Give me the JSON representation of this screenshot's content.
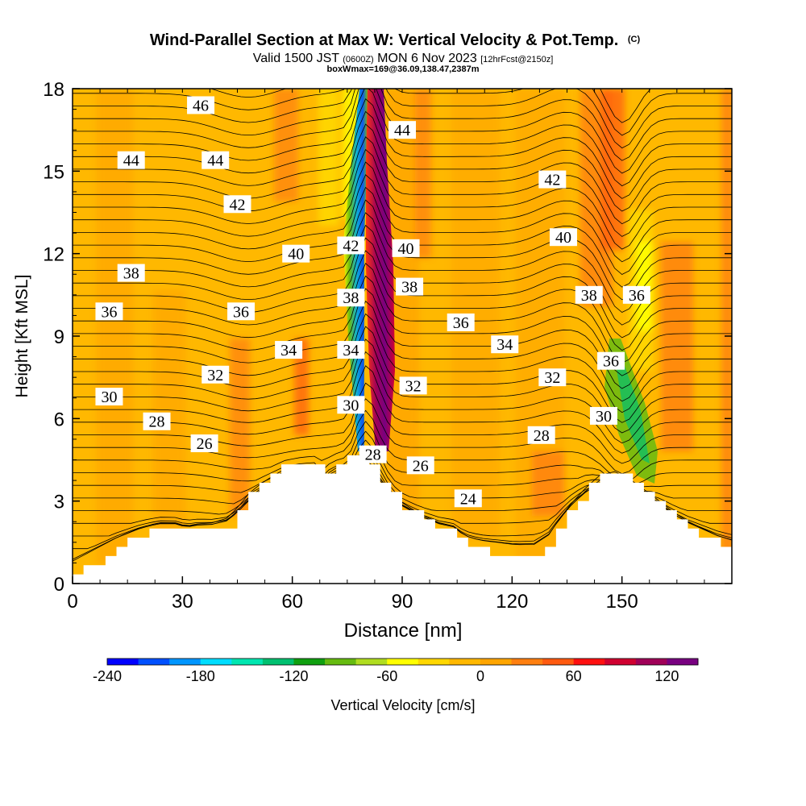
{
  "chart_data": {
    "type": "heatmap",
    "title": "Wind-Parallel Section at Max W: Vertical Velocity & Pot.Temp.",
    "title_mark": "(C)",
    "subtitle": {
      "valid_prefix": "Valid 1500 JST",
      "utc": "(0600Z)",
      "date": "MON 6 Nov 2023",
      "forecast": "[12hrFcst@2150z]"
    },
    "box_note": "boxWmax=169@36.09,138.47,2387m",
    "xlabel": "Distance [nm]",
    "ylabel": "Height [Kft MSL]",
    "xlim": [
      0,
      180
    ],
    "ylim": [
      0,
      18
    ],
    "x_ticks": [
      "0",
      "30",
      "60",
      "90",
      "120",
      "150"
    ],
    "y_ticks": [
      "0",
      "3",
      "6",
      "9",
      "12",
      "15",
      "18"
    ],
    "colorbar": {
      "label": "Vertical Velocity [cm/s]",
      "min": -240,
      "step": 20,
      "tick_labels": [
        "-240",
        "-180",
        "-120",
        "-60",
        "0",
        "60",
        "120"
      ],
      "colors": [
        "#0000ff",
        "#0050ff",
        "#0096ff",
        "#00ddff",
        "#00e6b0",
        "#00c070",
        "#10a010",
        "#66bb10",
        "#b0dd20",
        "#ffff00",
        "#ffd700",
        "#ffb800",
        "#ffa500",
        "#ff7f10",
        "#ff5a10",
        "#ff1010",
        "#d00030",
        "#a00058",
        "#780080"
      ]
    },
    "terrain_kft": [
      [
        0,
        0.3
      ],
      [
        3,
        0.55
      ],
      [
        6,
        0.8
      ],
      [
        9,
        1.05
      ],
      [
        12,
        1.3
      ],
      [
        15,
        1.5
      ],
      [
        18,
        1.7
      ],
      [
        21,
        1.85
      ],
      [
        24,
        1.95
      ],
      [
        28,
        1.95
      ],
      [
        31,
        1.8
      ],
      [
        34,
        1.9
      ],
      [
        38,
        1.95
      ],
      [
        42,
        2.15
      ],
      [
        45,
        2.6
      ],
      [
        48,
        3.2
      ],
      [
        51,
        3.6
      ],
      [
        55,
        4.0
      ],
      [
        58,
        4.25
      ],
      [
        62,
        4.3
      ],
      [
        66,
        4.3
      ],
      [
        68,
        3.6
      ],
      [
        70,
        4.1
      ],
      [
        72,
        4.4
      ],
      [
        75,
        4.8
      ],
      [
        79,
        4.7
      ],
      [
        82,
        4.1
      ],
      [
        86,
        3.4
      ],
      [
        90,
        2.8
      ],
      [
        95,
        2.3
      ],
      [
        100,
        1.95
      ],
      [
        104,
        1.8
      ],
      [
        107,
        1.4
      ],
      [
        111,
        1.2
      ],
      [
        116,
        1.1
      ],
      [
        121,
        1.0
      ],
      [
        126,
        1.0
      ],
      [
        130,
        1.4
      ],
      [
        133,
        2.1
      ],
      [
        136,
        2.7
      ],
      [
        140,
        3.4
      ],
      [
        144,
        4.0
      ],
      [
        148,
        4.2
      ],
      [
        152,
        3.9
      ],
      [
        156,
        3.4
      ],
      [
        160,
        2.9
      ],
      [
        164,
        2.4
      ],
      [
        168,
        2.0
      ],
      [
        172,
        1.7
      ],
      [
        176,
        1.4
      ],
      [
        180,
        1.2
      ]
    ],
    "theta_contour_labels": [
      {
        "value": "46",
        "x": 35,
        "y": 17.4
      },
      {
        "value": "44",
        "x": 16,
        "y": 15.4
      },
      {
        "value": "44",
        "x": 39,
        "y": 15.4
      },
      {
        "value": "42",
        "x": 45,
        "y": 13.8
      },
      {
        "value": "40",
        "x": 61,
        "y": 12.0
      },
      {
        "value": "38",
        "x": 16,
        "y": 11.3
      },
      {
        "value": "36",
        "x": 10,
        "y": 9.9
      },
      {
        "value": "36",
        "x": 46,
        "y": 9.9
      },
      {
        "value": "34",
        "x": 59,
        "y": 8.5
      },
      {
        "value": "32",
        "x": 39,
        "y": 7.6
      },
      {
        "value": "30",
        "x": 10,
        "y": 6.8
      },
      {
        "value": "28",
        "x": 23,
        "y": 5.9
      },
      {
        "value": "26",
        "x": 36,
        "y": 5.1
      },
      {
        "value": "42",
        "x": 76,
        "y": 12.3
      },
      {
        "value": "38",
        "x": 76,
        "y": 10.4
      },
      {
        "value": "34",
        "x": 76,
        "y": 8.5
      },
      {
        "value": "30",
        "x": 76,
        "y": 6.5
      },
      {
        "value": "28",
        "x": 82,
        "y": 4.7
      },
      {
        "value": "44",
        "x": 90,
        "y": 16.5
      },
      {
        "value": "40",
        "x": 91,
        "y": 12.2
      },
      {
        "value": "38",
        "x": 92,
        "y": 10.8
      },
      {
        "value": "32",
        "x": 93,
        "y": 7.2
      },
      {
        "value": "26",
        "x": 95,
        "y": 4.3
      },
      {
        "value": "24",
        "x": 108,
        "y": 3.1
      },
      {
        "value": "36",
        "x": 106,
        "y": 9.5
      },
      {
        "value": "34",
        "x": 118,
        "y": 8.7
      },
      {
        "value": "32",
        "x": 131,
        "y": 7.5
      },
      {
        "value": "28",
        "x": 128,
        "y": 5.4
      },
      {
        "value": "42",
        "x": 131,
        "y": 14.7
      },
      {
        "value": "40",
        "x": 134,
        "y": 12.6
      },
      {
        "value": "38",
        "x": 141,
        "y": 10.5
      },
      {
        "value": "36",
        "x": 154,
        "y": 10.5
      },
      {
        "value": "36",
        "x": 147,
        "y": 8.1
      },
      {
        "value": "30",
        "x": 145,
        "y": 6.1
      }
    ]
  }
}
